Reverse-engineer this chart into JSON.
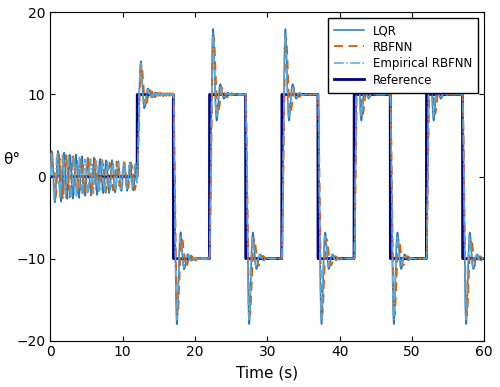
{
  "title": "",
  "xlabel": "Time (s)",
  "ylabel": "θ°",
  "xlim": [
    0,
    60
  ],
  "ylim": [
    -20,
    20
  ],
  "yticks": [
    -20,
    -10,
    0,
    10,
    20
  ],
  "xticks": [
    0,
    10,
    20,
    30,
    40,
    50,
    60
  ],
  "lqr_color": "#2878b5",
  "rbfnn_color": "#d95f02",
  "emp_rbfnn_color": "#55aadd",
  "reference_color": "#00008B",
  "figsize": [
    5.0,
    3.87
  ],
  "dpi": 100,
  "legend_entries": [
    "LQR",
    "RBFNN",
    "Empirical RBFNN",
    "Reference"
  ]
}
